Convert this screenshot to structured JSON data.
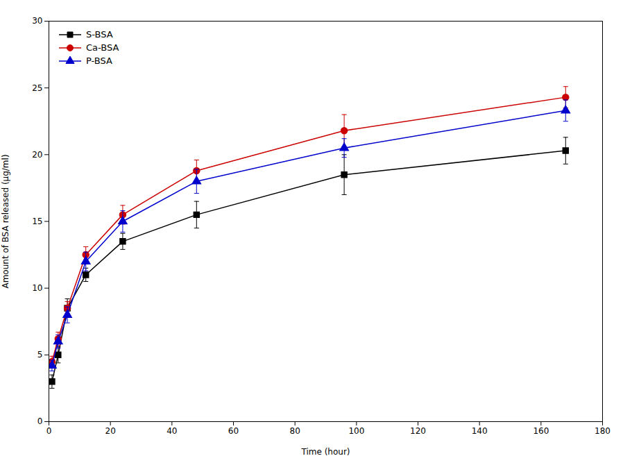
{
  "chart_data": {
    "type": "line",
    "xlabel": "Time (hour)",
    "ylabel": "Amount of BSA released (μg/ml)",
    "x": [
      1,
      3,
      6,
      12,
      24,
      48,
      96,
      168
    ],
    "series": [
      {
        "name": "S-BSA",
        "color": "#000000",
        "marker": "square",
        "values": [
          3.0,
          5.0,
          8.5,
          11.0,
          13.5,
          15.5,
          18.5,
          20.3
        ],
        "yerr": [
          0.5,
          0.6,
          0.7,
          0.5,
          0.6,
          1.0,
          1.5,
          1.0
        ]
      },
      {
        "name": "Ca-BSA",
        "color": "#cc0000",
        "marker": "circle",
        "values": [
          4.5,
          6.2,
          8.5,
          12.5,
          15.5,
          18.8,
          21.8,
          24.3
        ],
        "yerr": [
          0.4,
          0.5,
          0.5,
          0.6,
          0.7,
          0.8,
          1.2,
          0.8
        ]
      },
      {
        "name": "P-BSA",
        "color": "#0000cc",
        "marker": "triangle",
        "values": [
          4.2,
          6.0,
          8.0,
          12.0,
          15.0,
          18.0,
          20.5,
          23.3
        ],
        "yerr": [
          0.4,
          0.5,
          0.6,
          0.7,
          0.8,
          0.9,
          0.7,
          0.8
        ]
      }
    ],
    "xlim": [
      0,
      180
    ],
    "ylim": [
      0,
      30
    ],
    "xticks": [
      0,
      20,
      40,
      60,
      80,
      100,
      120,
      140,
      160,
      180
    ],
    "yticks": [
      0,
      5,
      10,
      15,
      20,
      25,
      30
    ],
    "grid": false,
    "legend": "upper left"
  }
}
